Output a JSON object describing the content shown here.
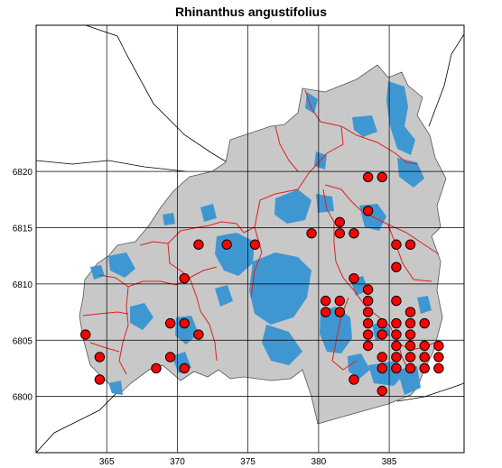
{
  "title": "Rhinanthus angustifolius",
  "axes": {
    "x_ticks": [
      365,
      370,
      375,
      380,
      385
    ],
    "y_ticks": [
      6800,
      6805,
      6810,
      6815,
      6820
    ],
    "x_range": [
      360,
      390.3
    ],
    "y_range": [
      6795,
      6833
    ]
  },
  "colors": {
    "land": "#c8c8c8",
    "water": "#3f97d1",
    "boundary": "#e02020",
    "point": "#ff0000",
    "grid": "#000000"
  },
  "occurrences": [
    [
      384.5,
      6819.5
    ],
    [
      383.5,
      6819.5
    ],
    [
      383.5,
      6816.5
    ],
    [
      381.5,
      6815.5
    ],
    [
      379.5,
      6814.5
    ],
    [
      381.5,
      6814.5
    ],
    [
      382.5,
      6814.5
    ],
    [
      371.5,
      6813.5
    ],
    [
      373.5,
      6813.5
    ],
    [
      375.5,
      6813.5
    ],
    [
      385.5,
      6813.5
    ],
    [
      386.5,
      6813.5
    ],
    [
      385.5,
      6811.5
    ],
    [
      370.5,
      6810.5
    ],
    [
      382.5,
      6810.5
    ],
    [
      383.5,
      6809.5
    ],
    [
      380.5,
      6808.5
    ],
    [
      381.5,
      6808.5
    ],
    [
      383.5,
      6808.5
    ],
    [
      385.5,
      6808.5
    ],
    [
      380.5,
      6807.5
    ],
    [
      381.5,
      6807.5
    ],
    [
      383.5,
      6807.5
    ],
    [
      386.5,
      6807.5
    ],
    [
      369.5,
      6806.5
    ],
    [
      370.5,
      6806.5
    ],
    [
      383.5,
      6806.5
    ],
    [
      384.5,
      6806.5
    ],
    [
      385.5,
      6806.5
    ],
    [
      386.5,
      6806.5
    ],
    [
      387.5,
      6806.5
    ],
    [
      363.5,
      6805.5
    ],
    [
      371.5,
      6805.5
    ],
    [
      383.5,
      6805.5
    ],
    [
      384.5,
      6805.5
    ],
    [
      385.5,
      6805.5
    ],
    [
      386.5,
      6805.5
    ],
    [
      383.5,
      6804.5
    ],
    [
      385.5,
      6804.5
    ],
    [
      386.5,
      6804.5
    ],
    [
      387.5,
      6804.5
    ],
    [
      388.5,
      6804.5
    ],
    [
      364.5,
      6803.5
    ],
    [
      369.5,
      6803.5
    ],
    [
      384.5,
      6803.5
    ],
    [
      385.5,
      6803.5
    ],
    [
      386.5,
      6803.5
    ],
    [
      387.5,
      6803.5
    ],
    [
      388.5,
      6803.5
    ],
    [
      368.5,
      6802.5
    ],
    [
      370.5,
      6802.5
    ],
    [
      384.5,
      6802.5
    ],
    [
      385.5,
      6802.5
    ],
    [
      386.5,
      6802.5
    ],
    [
      387.5,
      6802.5
    ],
    [
      388.5,
      6802.5
    ],
    [
      364.5,
      6801.5
    ],
    [
      382.5,
      6801.5
    ],
    [
      384.5,
      6800.5
    ]
  ]
}
